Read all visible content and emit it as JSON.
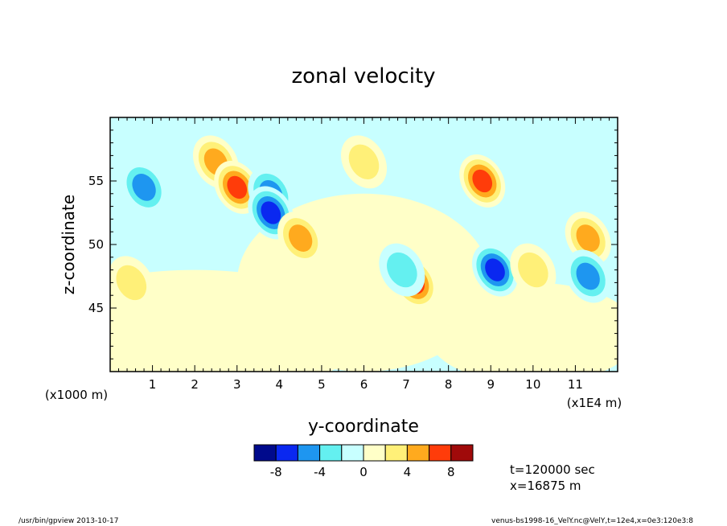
{
  "chart_data": {
    "type": "heatmap",
    "title": "zonal velocity",
    "xlabel": "y-coordinate",
    "ylabel": "z-coordinate",
    "xlim": [
      0,
      120000
    ],
    "ylim": [
      40000,
      60000
    ],
    "x_ticks": [
      "1",
      "2",
      "3",
      "4",
      "5",
      "6",
      "7",
      "8",
      "9",
      "10",
      "11"
    ],
    "y_ticks": [
      "45",
      "50",
      "55"
    ],
    "x_scale_note": "(x1E4 m)",
    "y_scale_note": "(x1000 m)",
    "colorbar": {
      "levels": [
        "-8",
        "-4",
        "0",
        "4",
        "8"
      ],
      "bins": [
        -10,
        -8,
        -6,
        -4,
        -2,
        0,
        2,
        4,
        6,
        8,
        10
      ],
      "colors": [
        "#000a8c",
        "#0a28f0",
        "#1e96f0",
        "#64f0f0",
        "#c8ffff",
        "#ffffc8",
        "#fff078",
        "#ffaa1e",
        "#ff3c0a",
        "#a00a0a"
      ]
    },
    "field_features": [
      {
        "y": 8000,
        "z": 54500,
        "u": -5
      },
      {
        "y": 25000,
        "z": 56500,
        "u": 5
      },
      {
        "y": 30000,
        "z": 54500,
        "u": 8
      },
      {
        "y": 38000,
        "z": 54000,
        "u": -6
      },
      {
        "y": 38000,
        "z": 52500,
        "u": -8
      },
      {
        "y": 45000,
        "z": 50500,
        "u": 5
      },
      {
        "y": 60000,
        "z": 56500,
        "u": 4
      },
      {
        "y": 72000,
        "z": 47000,
        "u": 8
      },
      {
        "y": 69000,
        "z": 48000,
        "u": -4
      },
      {
        "y": 88000,
        "z": 55000,
        "u": 8
      },
      {
        "y": 91000,
        "z": 48000,
        "u": -8
      },
      {
        "y": 100000,
        "z": 48000,
        "u": 4
      },
      {
        "y": 113000,
        "z": 50500,
        "u": 6
      },
      {
        "y": 113000,
        "z": 47500,
        "u": -5
      },
      {
        "y": 5000,
        "z": 47000,
        "u": 3
      }
    ]
  },
  "info": {
    "time": "t=120000 sec",
    "position": "x=16875 m"
  },
  "footer": {
    "left": "/usr/bin/gpview  2013-10-17",
    "right": "venus-bs1998-16_VelY.nc@VelY,t=12e4,x=0e3:120e3:8"
  }
}
